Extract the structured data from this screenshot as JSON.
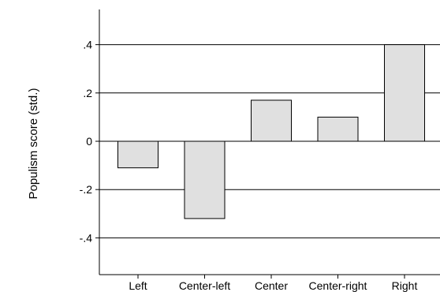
{
  "chart_data": {
    "type": "bar",
    "title": "",
    "xlabel": "",
    "ylabel": "Populism score (std.)",
    "categories": [
      "Left",
      "Center-left",
      "Center",
      "Center-right",
      "Right"
    ],
    "values": [
      -0.11,
      -0.32,
      0.17,
      0.1,
      0.4
    ],
    "ylim": [
      -0.55,
      0.54
    ],
    "yticks": [
      0.4,
      0.2,
      0,
      -0.2,
      -0.4
    ],
    "ytick_labels": [
      ".4",
      ".2",
      "0",
      "-.2",
      "-.4"
    ],
    "grid": "horizontal",
    "colors": {
      "bar_fill": "#e0e0e0",
      "bar_stroke": "#000000",
      "grid": "#000000"
    }
  }
}
